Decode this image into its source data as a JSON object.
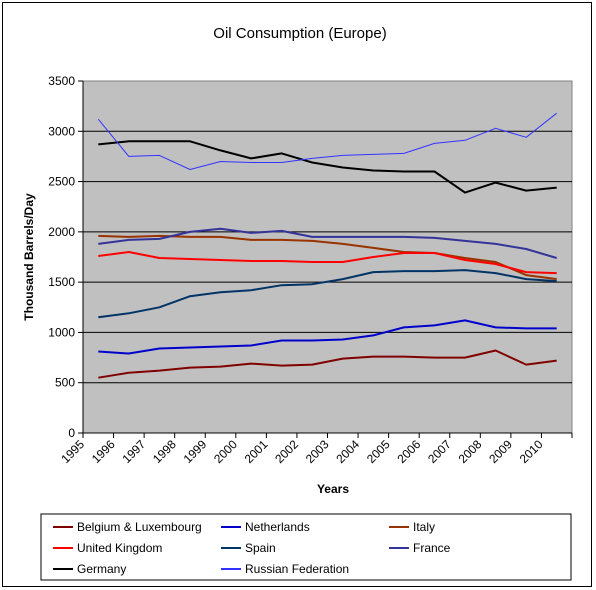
{
  "chart_data": {
    "type": "line",
    "title": "Oil Consumption (Europe)",
    "xlabel": "Years",
    "ylabel": "Thousand Barrels/Day",
    "x": [
      "1995",
      "1996",
      "1997",
      "1998",
      "1999",
      "2000",
      "2001",
      "2002",
      "2003",
      "2004",
      "2005",
      "2006",
      "2007",
      "2008",
      "2009",
      "2010"
    ],
    "ylim": [
      0,
      3500
    ],
    "yticks": [
      0,
      500,
      1000,
      1500,
      2000,
      2500,
      3000,
      3500
    ],
    "grid": true,
    "legend_position": "bottom",
    "series": [
      {
        "name": "Belgium & Luxembourg",
        "color": "#800000",
        "values": [
          550,
          600,
          620,
          650,
          660,
          690,
          670,
          680,
          740,
          760,
          760,
          750,
          750,
          820,
          680,
          720
        ]
      },
      {
        "name": "Netherlands",
        "color": "#0000cc",
        "values": [
          810,
          790,
          840,
          850,
          860,
          870,
          920,
          920,
          930,
          970,
          1050,
          1070,
          1120,
          1050,
          1040,
          1040
        ]
      },
      {
        "name": "Italy",
        "color": "#993300",
        "values": [
          1960,
          1950,
          1960,
          1950,
          1950,
          1920,
          1920,
          1910,
          1880,
          1840,
          1800,
          1790,
          1740,
          1700,
          1570,
          1530
        ]
      },
      {
        "name": "United Kingdom",
        "color": "#ff0000",
        "values": [
          1760,
          1800,
          1740,
          1730,
          1720,
          1710,
          1710,
          1700,
          1700,
          1750,
          1790,
          1790,
          1720,
          1680,
          1600,
          1590
        ]
      },
      {
        "name": "Spain",
        "color": "#003366",
        "values": [
          1150,
          1190,
          1250,
          1360,
          1400,
          1420,
          1470,
          1480,
          1530,
          1600,
          1610,
          1610,
          1620,
          1590,
          1530,
          1510
        ]
      },
      {
        "name": "France",
        "color": "#333399",
        "values": [
          1880,
          1920,
          1930,
          2000,
          2030,
          1990,
          2010,
          1950,
          1950,
          1950,
          1950,
          1940,
          1910,
          1880,
          1830,
          1740
        ]
      },
      {
        "name": "Germany",
        "color": "#000000",
        "values": [
          2870,
          2900,
          2900,
          2900,
          2810,
          2730,
          2780,
          2690,
          2640,
          2610,
          2600,
          2600,
          2390,
          2490,
          2410,
          2440
        ]
      },
      {
        "name": "Russian Federation",
        "color": "#3333ff",
        "values": [
          3120,
          2750,
          2760,
          2620,
          2700,
          2690,
          2690,
          2730,
          2760,
          2770,
          2780,
          2880,
          2910,
          3030,
          2940,
          3180
        ]
      }
    ]
  }
}
